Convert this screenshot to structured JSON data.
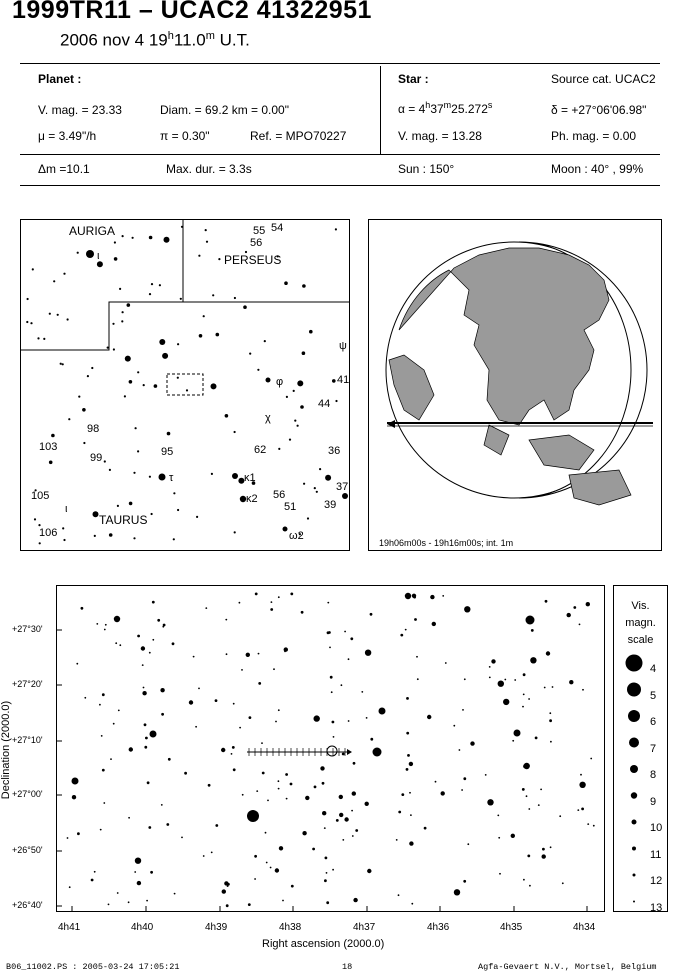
{
  "header": {
    "title": "1999TR11  –  UCAC2 41322951",
    "date_prefix": "2006 nov  4  19",
    "date_hour_sup": "h",
    "date_min": "11.0",
    "date_min_sup": "m",
    "date_suffix": " U.T."
  },
  "planet": {
    "heading": "Planet :",
    "vmag": "V. mag. = 23.33",
    "diam": "Diam. = 69.2 km = 0.00\"",
    "mu": "μ =  3.49\"/h",
    "pi": "π =  0.30\"",
    "ref": "Ref. = MPO70227"
  },
  "star": {
    "heading": "Star :",
    "source": "Source cat.  UCAC2",
    "alpha": "α = 4h37m25.272s",
    "alpha_parts": [
      "α = 4",
      "h",
      "37",
      "m",
      "25.272",
      "s"
    ],
    "delta": "δ = +27°06'06.98\"",
    "vmag": "V. mag. = 13.28",
    "phmag": "Ph. mag. =  0.00"
  },
  "summary": {
    "dm": "Δm =10.1",
    "maxdur": "Max. dur. = 3.3s",
    "sun": "Sun : 150°",
    "moon": "Moon :  40° , 99%"
  },
  "finder": {
    "constellations": [
      "AURIGA",
      "PERSEUS",
      "TAURUS"
    ],
    "star_labels": [
      "55",
      "54",
      "56",
      "ι",
      "ψ",
      "φ",
      "41",
      "44",
      "χ",
      "98",
      "103",
      "99",
      "95",
      "62",
      "36",
      "τ",
      "κ1",
      "κ2",
      "56",
      "51",
      "37",
      "39",
      "105",
      "ι",
      "106",
      "ω2"
    ]
  },
  "globe": {
    "caption": "19h06m00s - 19h16m00s; int.  1m"
  },
  "detail_chart": {
    "dec_ticks": [
      "+27°30'",
      "+27°20'",
      "+27°10'",
      "+27°00'",
      "+26°50'",
      "+26°40'"
    ],
    "ra_ticks": [
      "4h41",
      "4h40",
      "4h39",
      "4h38",
      "4h37",
      "4h36",
      "4h35",
      "4h34"
    ],
    "xlabel": "Right ascension (2000.0)",
    "ylabel": "Declination (2000.0)"
  },
  "mag_scale": {
    "title_lines": [
      "Vis.",
      "magn.",
      "scale"
    ],
    "levels": [
      "4",
      "5",
      "6",
      "7",
      "8",
      "9",
      "10",
      "11",
      "12",
      "13"
    ]
  },
  "footer": {
    "left": "B06_11002.PS : 2005-03-24 17:05:21",
    "center": "18",
    "right": "Agfa-Gevaert N.V., Mortsel, Belgium"
  }
}
